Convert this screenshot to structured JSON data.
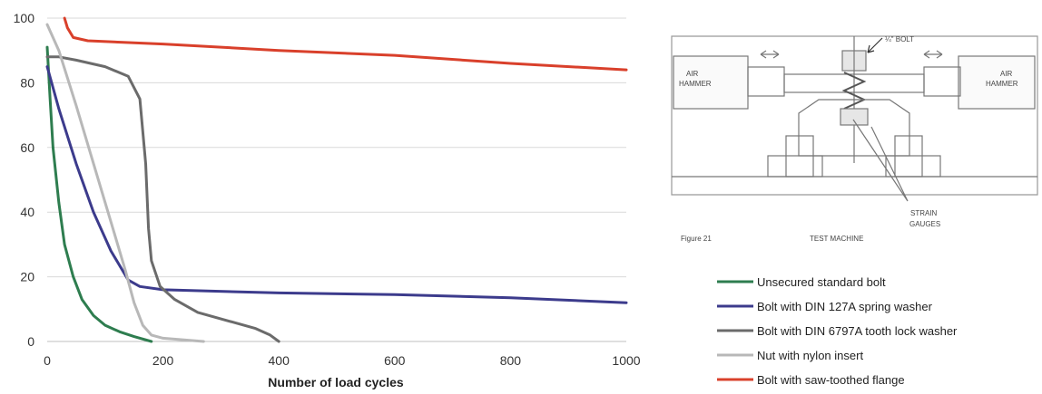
{
  "chart_data": {
    "type": "line",
    "xlabel": "Number of load cycles",
    "ylabel": "",
    "xlim": [
      0,
      1000
    ],
    "ylim": [
      0,
      100
    ],
    "x_ticks": [
      0,
      200,
      400,
      600,
      800,
      1000
    ],
    "y_ticks": [
      0,
      20,
      40,
      60,
      80,
      100
    ],
    "grid": "horizontal",
    "legend_position": "right-bottom",
    "series": [
      {
        "name": "Unsecured standard bolt",
        "color": "#2e7d4f",
        "points": [
          [
            0,
            91
          ],
          [
            5,
            75
          ],
          [
            10,
            60
          ],
          [
            20,
            43
          ],
          [
            30,
            30
          ],
          [
            45,
            20
          ],
          [
            60,
            13
          ],
          [
            80,
            8
          ],
          [
            100,
            5
          ],
          [
            125,
            3
          ],
          [
            150,
            1.5
          ],
          [
            180,
            0
          ]
        ]
      },
      {
        "name": "Bolt with DIN 127A  spring washer",
        "color": "#3c3b8c",
        "points": [
          [
            0,
            85
          ],
          [
            20,
            72
          ],
          [
            50,
            55
          ],
          [
            80,
            40
          ],
          [
            110,
            28
          ],
          [
            140,
            19
          ],
          [
            160,
            17
          ],
          [
            200,
            16
          ],
          [
            400,
            15
          ],
          [
            600,
            14.5
          ],
          [
            800,
            13.5
          ],
          [
            1000,
            12
          ]
        ]
      },
      {
        "name": "Bolt with DIN 6797A  tooth lock washer",
        "color": "#6b6b6b",
        "points": [
          [
            0,
            88
          ],
          [
            20,
            88
          ],
          [
            50,
            87
          ],
          [
            100,
            85
          ],
          [
            140,
            82
          ],
          [
            160,
            75
          ],
          [
            170,
            55
          ],
          [
            175,
            35
          ],
          [
            180,
            25
          ],
          [
            195,
            17
          ],
          [
            220,
            13
          ],
          [
            260,
            9
          ],
          [
            320,
            6
          ],
          [
            360,
            4
          ],
          [
            385,
            2
          ],
          [
            400,
            0
          ]
        ]
      },
      {
        "name": "Nut with nylon insert",
        "color": "#b8b8b8",
        "points": [
          [
            0,
            98
          ],
          [
            20,
            90
          ],
          [
            50,
            73
          ],
          [
            80,
            55
          ],
          [
            110,
            37
          ],
          [
            135,
            22
          ],
          [
            150,
            12
          ],
          [
            165,
            5
          ],
          [
            180,
            2
          ],
          [
            200,
            1
          ],
          [
            270,
            0
          ]
        ]
      },
      {
        "name": "Bolt with saw-toothed flange",
        "color": "#d9402b",
        "points": [
          [
            30,
            100
          ],
          [
            35,
            97
          ],
          [
            45,
            94
          ],
          [
            70,
            93
          ],
          [
            200,
            92
          ],
          [
            400,
            90
          ],
          [
            600,
            88.5
          ],
          [
            800,
            86
          ],
          [
            1000,
            84
          ]
        ]
      }
    ]
  },
  "diagram": {
    "bolt_label": "¼\" BOLT",
    "left_hammer": [
      "AIR",
      "HAMMER"
    ],
    "right_hammer": [
      "AIR",
      "HAMMER"
    ],
    "strain_label": [
      "STRAIN",
      "GAUGES"
    ],
    "figure_label": "Figure 21",
    "caption": "TEST MACHINE"
  }
}
